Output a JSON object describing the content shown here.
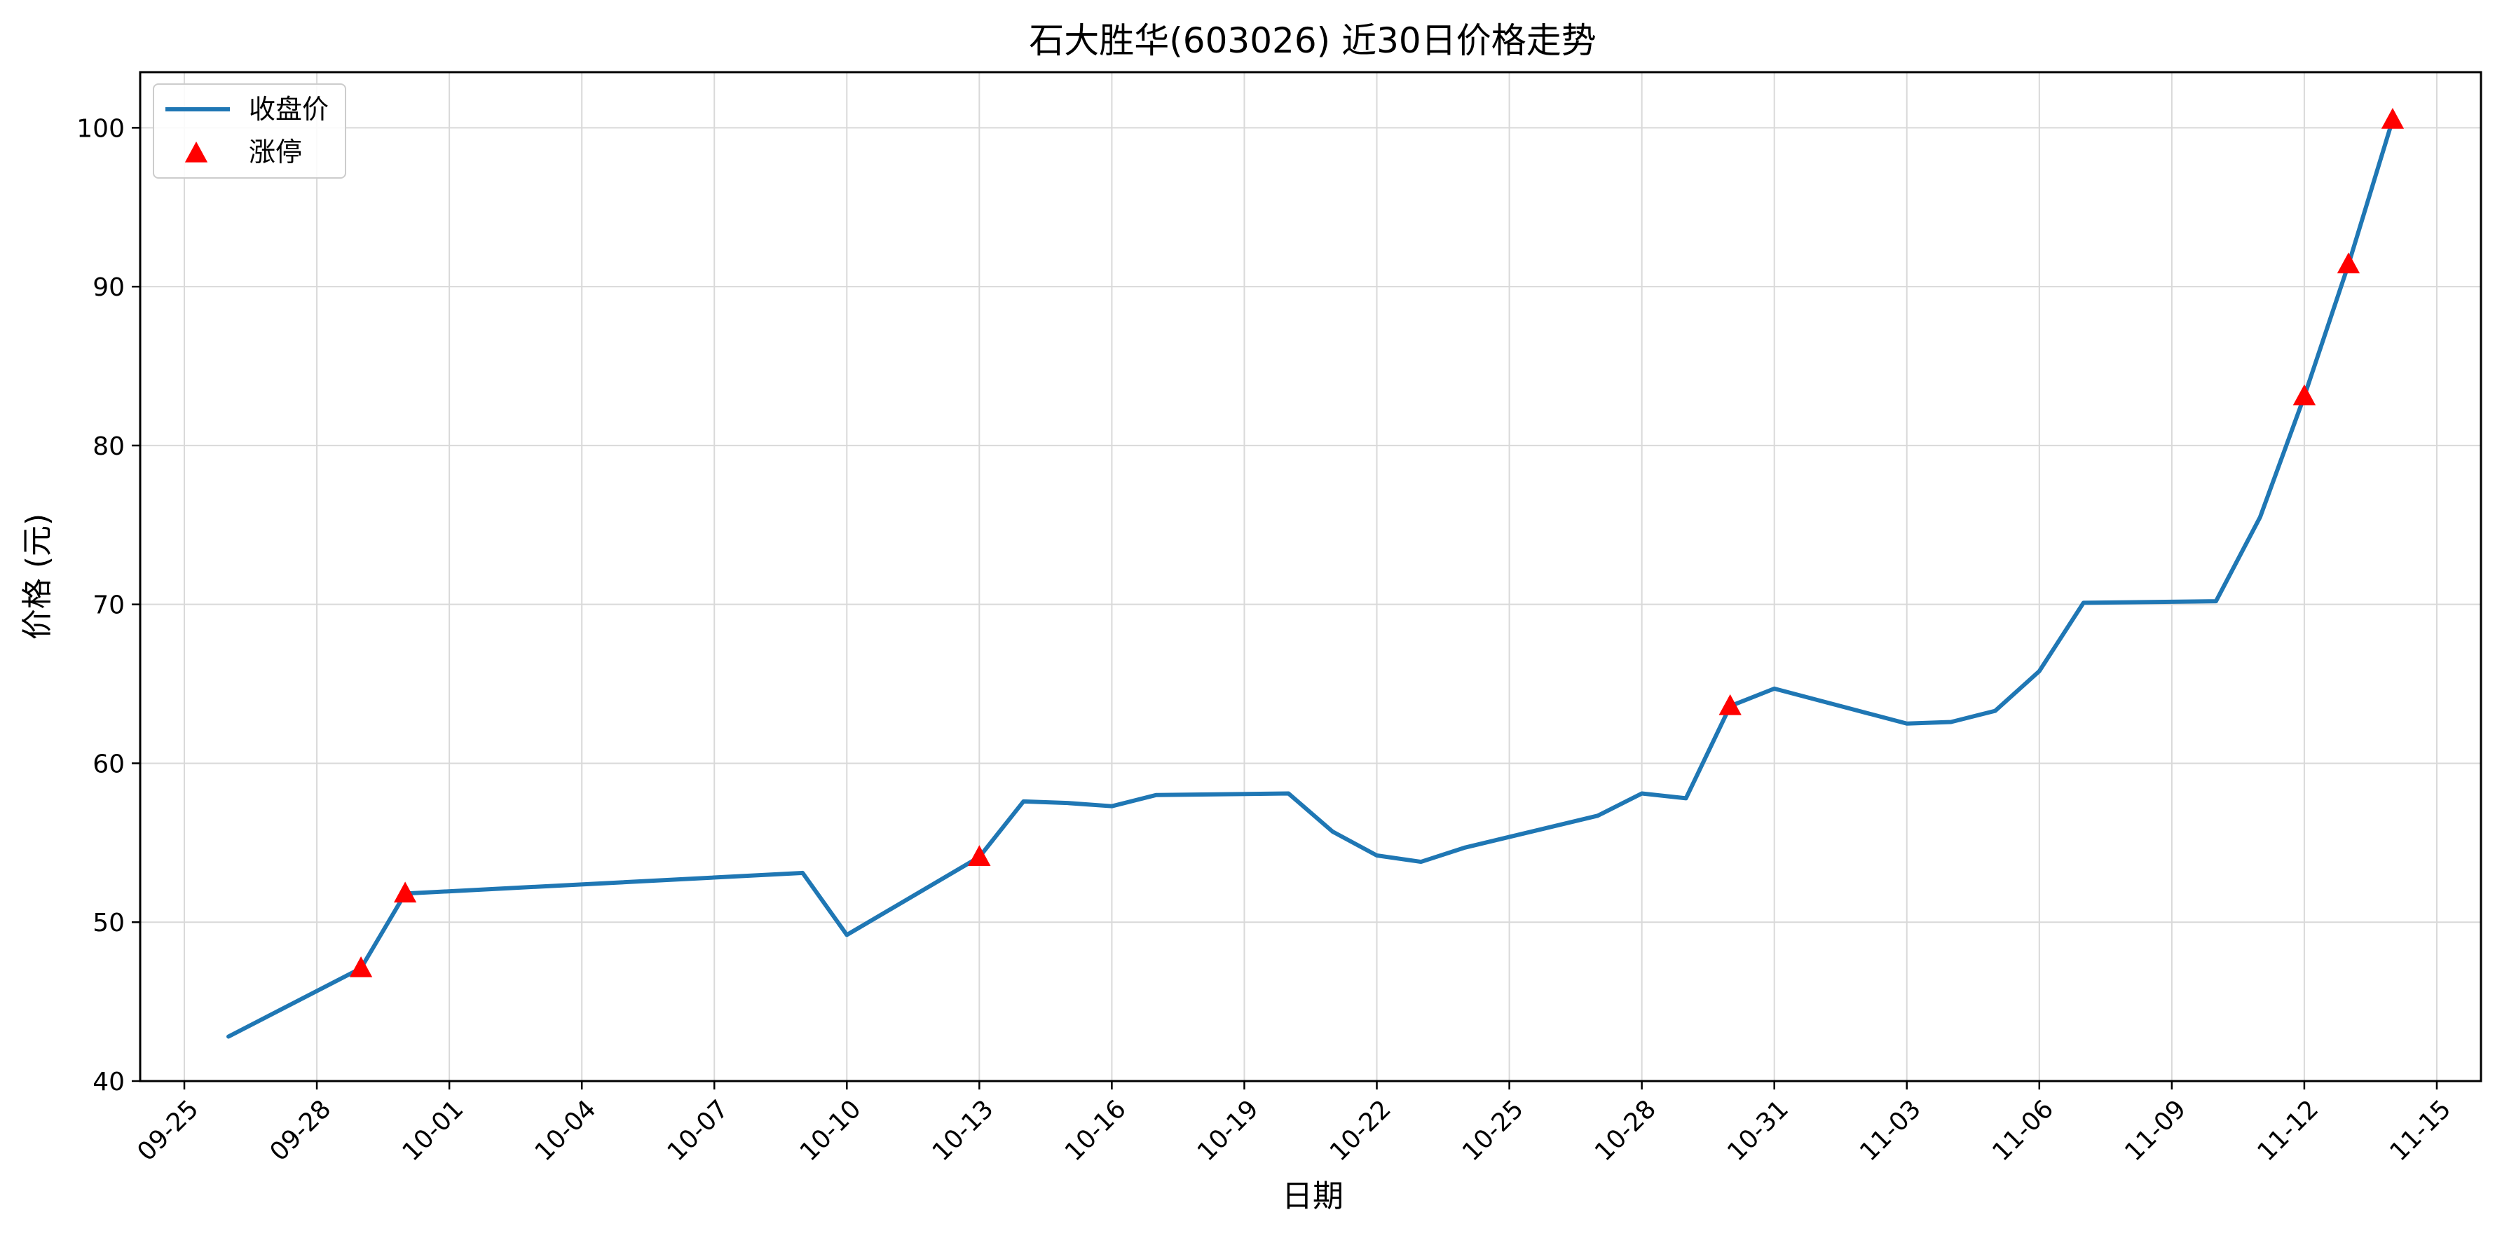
{
  "chart_data": {
    "type": "line",
    "title": "石大胜华(603026) 近30日价格走势",
    "xlabel": "日期",
    "ylabel": "价格 (元)",
    "x_ticks": [
      "09-25",
      "09-28",
      "10-01",
      "10-04",
      "10-07",
      "10-10",
      "10-13",
      "10-16",
      "10-19",
      "10-22",
      "10-25",
      "10-28",
      "10-31",
      "11-03",
      "11-06",
      "11-09",
      "11-12",
      "11-15"
    ],
    "y_ticks": [
      40,
      50,
      60,
      70,
      80,
      90,
      100
    ],
    "ylim": [
      40,
      103.5
    ],
    "xlim": [
      "2025-09-24",
      "2025-11-16"
    ],
    "grid": true,
    "legend_position": "top-left",
    "series": [
      {
        "name": "收盘价",
        "kind": "line",
        "color": "#1f77b4",
        "points": [
          {
            "x": "2025-09-26",
            "y": 42.8
          },
          {
            "x": "2025-09-29",
            "y": 47.1
          },
          {
            "x": "2025-09-30",
            "y": 51.8
          },
          {
            "x": "2025-10-09",
            "y": 53.1
          },
          {
            "x": "2025-10-10",
            "y": 49.2
          },
          {
            "x": "2025-10-13",
            "y": 54.1
          },
          {
            "x": "2025-10-14",
            "y": 57.6
          },
          {
            "x": "2025-10-15",
            "y": 57.5
          },
          {
            "x": "2025-10-16",
            "y": 57.3
          },
          {
            "x": "2025-10-17",
            "y": 58.0
          },
          {
            "x": "2025-10-20",
            "y": 58.1
          },
          {
            "x": "2025-10-21",
            "y": 55.7
          },
          {
            "x": "2025-10-22",
            "y": 54.2
          },
          {
            "x": "2025-10-23",
            "y": 53.8
          },
          {
            "x": "2025-10-24",
            "y": 54.7
          },
          {
            "x": "2025-10-27",
            "y": 56.7
          },
          {
            "x": "2025-10-28",
            "y": 58.1
          },
          {
            "x": "2025-10-29",
            "y": 57.8
          },
          {
            "x": "2025-10-30",
            "y": 63.6
          },
          {
            "x": "2025-10-31",
            "y": 64.7
          },
          {
            "x": "2025-11-03",
            "y": 62.5
          },
          {
            "x": "2025-11-04",
            "y": 62.6
          },
          {
            "x": "2025-11-05",
            "y": 63.3
          },
          {
            "x": "2025-11-06",
            "y": 65.8
          },
          {
            "x": "2025-11-07",
            "y": 70.1
          },
          {
            "x": "2025-11-10",
            "y": 70.2
          },
          {
            "x": "2025-11-11",
            "y": 75.5
          },
          {
            "x": "2025-11-12",
            "y": 83.1
          },
          {
            "x": "2025-11-13",
            "y": 91.4
          },
          {
            "x": "2025-11-14",
            "y": 100.5
          }
        ]
      },
      {
        "name": "涨停",
        "kind": "scatter",
        "marker": "triangle",
        "color": "#ff0000",
        "points": [
          {
            "x": "2025-09-29",
            "y": 47.1
          },
          {
            "x": "2025-09-30",
            "y": 51.8
          },
          {
            "x": "2025-10-13",
            "y": 54.1
          },
          {
            "x": "2025-10-30",
            "y": 63.6
          },
          {
            "x": "2025-11-12",
            "y": 83.1
          },
          {
            "x": "2025-11-13",
            "y": 91.4
          },
          {
            "x": "2025-11-14",
            "y": 100.5
          }
        ]
      }
    ]
  }
}
